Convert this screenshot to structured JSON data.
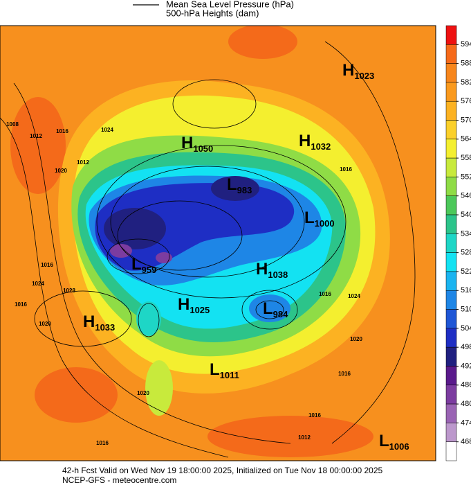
{
  "legend": {
    "line_label": "Mean Sea Level Pressure (hPa)",
    "fill_label": "500-hPa Heights (dam)"
  },
  "centers": [
    {
      "type": "H",
      "pressure": "1023"
    },
    {
      "type": "H",
      "pressure": "1050"
    },
    {
      "type": "H",
      "pressure": "1032"
    },
    {
      "type": "L",
      "pressure": "983"
    },
    {
      "type": "L",
      "pressure": "1000"
    },
    {
      "type": "L",
      "pressure": "959"
    },
    {
      "type": "H",
      "pressure": "1038"
    },
    {
      "type": "H",
      "pressure": "1025"
    },
    {
      "type": "H",
      "pressure": "1033"
    },
    {
      "type": "L",
      "pressure": "984"
    },
    {
      "type": "L",
      "pressure": "1011"
    },
    {
      "type": "L",
      "pressure": "1006"
    }
  ],
  "isobar_labels": [
    "1008",
    "1012",
    "1016",
    "1020",
    "1016",
    "1024",
    "1028",
    "1016",
    "1020",
    "1024",
    "1020",
    "1016",
    "1012",
    "1020",
    "1016",
    "1012",
    "1016",
    "1016",
    "1024",
    "1016"
  ],
  "colorbar": {
    "ticks": [
      594,
      588,
      582,
      576,
      570,
      564,
      558,
      552,
      546,
      540,
      534,
      528,
      522,
      516,
      510,
      504,
      498,
      492,
      486,
      480,
      474,
      468
    ],
    "colors": [
      "#ee1111",
      "#f66a1a",
      "#f7861c",
      "#fa9a1e",
      "#fcb222",
      "#fbd02a",
      "#f4ef2f",
      "#c8ea3c",
      "#8fdc46",
      "#4cc85a",
      "#2cc48a",
      "#1ed6c6",
      "#13e2f2",
      "#1ab4f0",
      "#1e86e6",
      "#1e56d6",
      "#1e2ec4",
      "#202080",
      "#5a1a8c",
      "#7c3ca0",
      "#9a64b4",
      "#bc98cc",
      "#ffffff"
    ]
  },
  "footer": {
    "line1": "42-h Fcst Valid on Wed Nov 19 18:00:00 2025, Initialized on Tue Nov 18 00:00:00 2025",
    "line2": "NCEP-GFS  - meteocentre.com"
  }
}
